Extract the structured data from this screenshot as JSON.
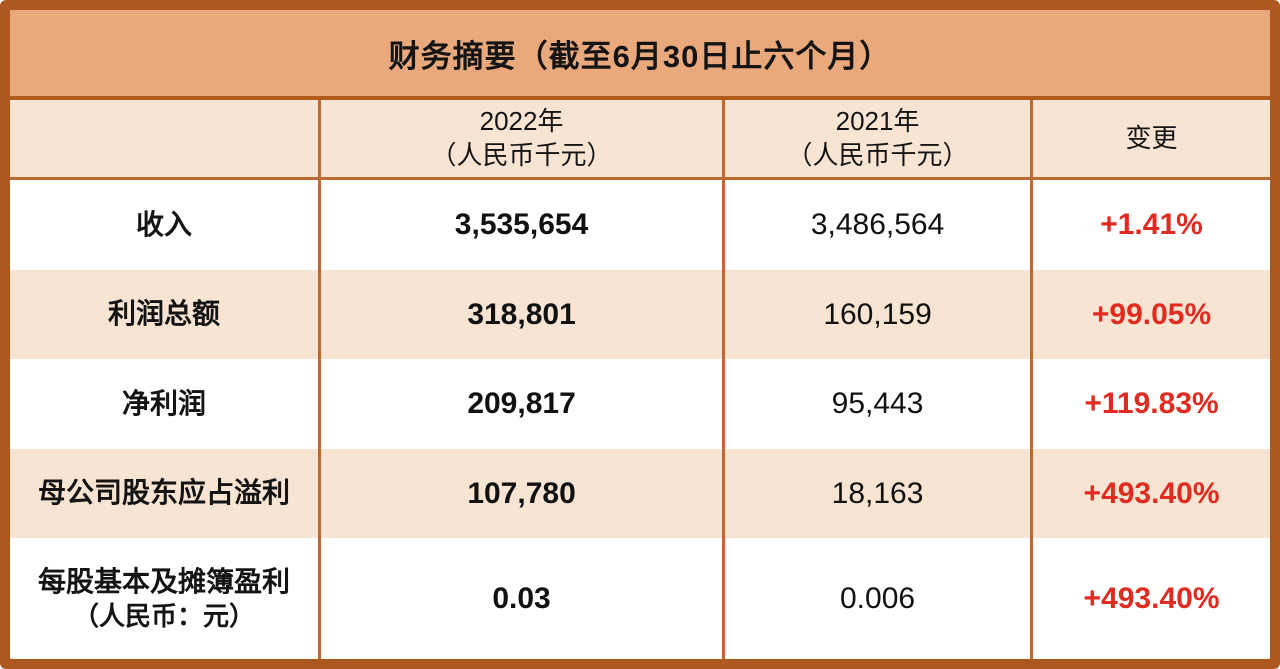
{
  "table": {
    "title": "财务摘要（截至6月30日止六个月）",
    "columns": [
      {
        "line1": "",
        "line2": ""
      },
      {
        "line1": "2022年",
        "line2": "（人民币千元）"
      },
      {
        "line1": "2021年",
        "line2": "（人民币千元）"
      },
      {
        "line1": "变更",
        "line2": ""
      }
    ],
    "rows": [
      {
        "label1": "收入",
        "label2": "",
        "v2022": "3,535,654",
        "v2021": "3,486,564",
        "change": "+1.41%"
      },
      {
        "label1": "利润总额",
        "label2": "",
        "v2022": "318,801",
        "v2021": "160,159",
        "change": "+99.05%"
      },
      {
        "label1": "净利润",
        "label2": "",
        "v2022": "209,817",
        "v2021": "95,443",
        "change": "+119.83%"
      },
      {
        "label1": "母公司股东应占溢利",
        "label2": "",
        "v2022": "107,780",
        "v2021": "18,163",
        "change": "+493.40%"
      },
      {
        "label1": "每股基本及摊簿盈利",
        "label2": "（人民币：元）",
        "v2022": "0.03",
        "v2021": "0.006",
        "change": "+493.40%"
      }
    ],
    "colors": {
      "frame": "#ae5720",
      "title_bg": "#e9a97c",
      "peach_bg": "#f8e4d2",
      "divider": "#c4672c",
      "change_red": "#e12b20",
      "text": "#141414"
    }
  }
}
